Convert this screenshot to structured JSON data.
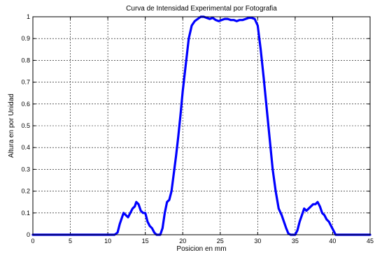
{
  "chart_data": {
    "type": "line",
    "title": "Curva de Intensidad Experimental por Fotografia",
    "xlabel": "Posicion en mm",
    "ylabel": "Altura en por Unidad",
    "xlim": [
      0,
      45
    ],
    "ylim": [
      0,
      1
    ],
    "xticks": [
      0,
      5,
      10,
      15,
      20,
      25,
      30,
      35,
      40,
      45
    ],
    "yticks": [
      0,
      0.1,
      0.2,
      0.3,
      0.4,
      0.5,
      0.6,
      0.7,
      0.8,
      0.9,
      1
    ],
    "grid": true,
    "line_color": "#0000ff",
    "series": [
      {
        "x": [
          0,
          10.9,
          11.3,
          11.6,
          11.9,
          12.1,
          12.4,
          12.7,
          13.0,
          13.3,
          13.6,
          13.8,
          14.1,
          14.4,
          14.7,
          15.0,
          15.3,
          15.6,
          15.9,
          16.2,
          16.5,
          16.8,
          17.0,
          17.3,
          17.6,
          17.9,
          18.2,
          18.5,
          18.8,
          19.1,
          19.4,
          19.7,
          20.0,
          20.4,
          20.8,
          21.2,
          21.6,
          22.0,
          22.4,
          22.8,
          23.2,
          23.6,
          24.0,
          24.4,
          24.8,
          25.2,
          25.6,
          26.0,
          26.4,
          26.8,
          27.2,
          27.6,
          28.0,
          28.4,
          28.8,
          29.2,
          29.6,
          30.0,
          30.4,
          30.8,
          31.2,
          31.6,
          32.0,
          32.4,
          32.8,
          33.2,
          33.5,
          33.8,
          34.1,
          34.4,
          34.7,
          35.0,
          35.3,
          35.6,
          35.9,
          36.2,
          36.5,
          36.8,
          37.1,
          37.4,
          37.7,
          38.0,
          38.3,
          38.6,
          38.9,
          39.2,
          39.5,
          39.8,
          40.1,
          40.4,
          40.7,
          45
        ],
        "y": [
          0,
          0,
          0.01,
          0.05,
          0.08,
          0.1,
          0.09,
          0.08,
          0.1,
          0.12,
          0.13,
          0.15,
          0.14,
          0.11,
          0.1,
          0.1,
          0.06,
          0.04,
          0.03,
          0.01,
          0.0,
          0.0,
          0.0,
          0.03,
          0.1,
          0.15,
          0.16,
          0.2,
          0.28,
          0.36,
          0.45,
          0.55,
          0.66,
          0.78,
          0.9,
          0.96,
          0.98,
          0.99,
          1.0,
          1.0,
          0.995,
          0.99,
          0.995,
          0.985,
          0.98,
          0.985,
          0.99,
          0.99,
          0.985,
          0.985,
          0.98,
          0.985,
          0.985,
          0.99,
          0.995,
          0.995,
          0.99,
          0.96,
          0.85,
          0.72,
          0.58,
          0.44,
          0.3,
          0.2,
          0.12,
          0.09,
          0.06,
          0.03,
          0.005,
          0.0,
          0.0,
          0.0,
          0.02,
          0.06,
          0.09,
          0.12,
          0.11,
          0.12,
          0.13,
          0.14,
          0.14,
          0.15,
          0.13,
          0.1,
          0.09,
          0.07,
          0.06,
          0.04,
          0.02,
          0.0,
          0.0,
          0.0
        ]
      }
    ]
  }
}
